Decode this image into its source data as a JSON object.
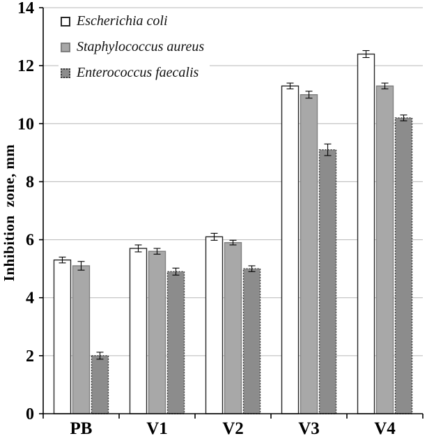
{
  "chart_data": {
    "type": "bar",
    "categories": [
      "PB",
      "V1",
      "V2",
      "V3",
      "V4"
    ],
    "series": [
      {
        "name": "Escherichia coli",
        "values": [
          5.3,
          5.7,
          6.1,
          11.3,
          12.4
        ],
        "errors": [
          0.1,
          0.12,
          0.12,
          0.1,
          0.12
        ],
        "fill": "#ffffff",
        "border": "#262626",
        "border_style": "solid"
      },
      {
        "name": "Staphylococcus aureus",
        "values": [
          5.1,
          5.6,
          5.9,
          11.0,
          11.3
        ],
        "errors": [
          0.15,
          0.1,
          0.08,
          0.12,
          0.1
        ],
        "fill": "#a8a8a8",
        "border": "#7f7f7f",
        "border_style": "solid"
      },
      {
        "name": "Enterococcus faecalis",
        "values": [
          2.0,
          4.9,
          5.0,
          9.1,
          10.2
        ],
        "errors": [
          0.12,
          0.12,
          0.1,
          0.2,
          0.1
        ],
        "fill": "#8c8c8c",
        "border": "#3a3a3a",
        "border_style": "dotted"
      }
    ],
    "ylabel": "Inhibition  zone, mm",
    "ylim": [
      0,
      14
    ],
    "ytick_step": 2,
    "grid": true,
    "legend_position": "top-left-inside",
    "colors": {
      "grid": "#b7b7b7",
      "axis": "#000000",
      "error_bar": "#000000"
    }
  }
}
